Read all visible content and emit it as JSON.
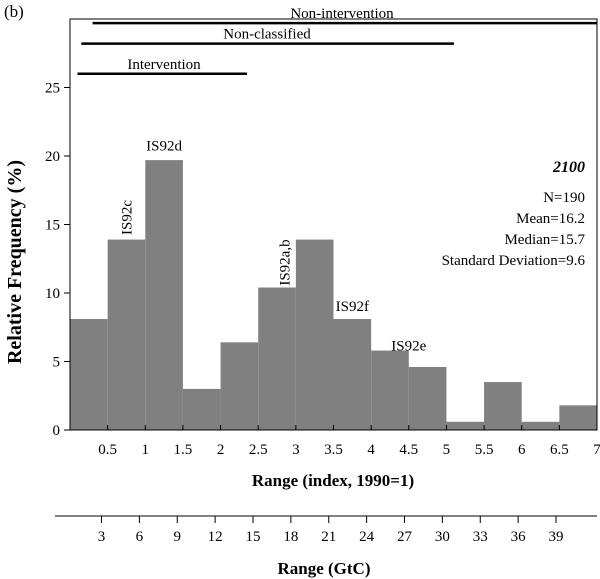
{
  "panel_label": "(b)",
  "chart_data": {
    "type": "bar",
    "ylabel": "Relative Frequency (%)",
    "xlabel": "Range (index, 1990=1)",
    "xlabel2": "Range (GtC)",
    "xlim": [
      0,
      7
    ],
    "ylim": [
      0,
      30
    ],
    "yticks": [
      0,
      5,
      10,
      15,
      20,
      25
    ],
    "xticks": [
      0.5,
      1,
      1.5,
      2,
      2.5,
      3,
      3.5,
      4,
      4.5,
      5,
      5.5,
      6,
      6.5,
      7
    ],
    "x2ticks": [
      3,
      6,
      9,
      12,
      15,
      18,
      21,
      24,
      27,
      30,
      33,
      36,
      39
    ],
    "bars": [
      {
        "x0": 0,
        "x1": 0.5,
        "value": 8.1
      },
      {
        "x0": 0.5,
        "x1": 1.0,
        "value": 13.9
      },
      {
        "x0": 1.0,
        "x1": 1.5,
        "value": 19.7
      },
      {
        "x0": 1.5,
        "x1": 2.0,
        "value": 3.0
      },
      {
        "x0": 2.0,
        "x1": 2.5,
        "value": 6.4
      },
      {
        "x0": 2.5,
        "x1": 3.0,
        "value": 10.4
      },
      {
        "x0": 3.0,
        "x1": 3.5,
        "value": 13.9
      },
      {
        "x0": 3.5,
        "x1": 4.0,
        "value": 8.1
      },
      {
        "x0": 4.0,
        "x1": 4.5,
        "value": 5.8
      },
      {
        "x0": 4.5,
        "x1": 5.0,
        "value": 4.6
      },
      {
        "x0": 5.0,
        "x1": 5.5,
        "value": 0.6
      },
      {
        "x0": 5.5,
        "x1": 6.0,
        "value": 3.5
      },
      {
        "x0": 6.0,
        "x1": 6.5,
        "value": 0.6
      },
      {
        "x0": 6.5,
        "x1": 7.0,
        "value": 1.8
      }
    ],
    "bar_color": "#808080",
    "annotations": [
      {
        "text": "IS92c",
        "x": 0.75,
        "y": 14.6,
        "rotate": true
      },
      {
        "text": "IS92d",
        "x": 1.25,
        "y": 20.4,
        "rotate": false
      },
      {
        "text": "IS92a,b",
        "x": 2.85,
        "y": 10.9,
        "rotate": true
      },
      {
        "text": "IS92f",
        "x": 3.75,
        "y": 8.7,
        "rotate": false
      },
      {
        "text": "IS92e",
        "x": 4.5,
        "y": 5.8,
        "rotate": false
      }
    ],
    "ranges": [
      {
        "label": "Non-intervention",
        "x0": 0.3,
        "x1": 7.0,
        "y": 29.7
      },
      {
        "label": "Non-classified",
        "x0": 0.15,
        "x1": 5.1,
        "y": 28.2
      },
      {
        "label": "Intervention",
        "x0": 0.1,
        "x1": 2.35,
        "y": 26.0
      }
    ],
    "stats": {
      "year": "2100",
      "lines": [
        "N=190",
        "Mean=16.2",
        "Median=15.7",
        "Standard Deviation=9.6"
      ]
    }
  }
}
